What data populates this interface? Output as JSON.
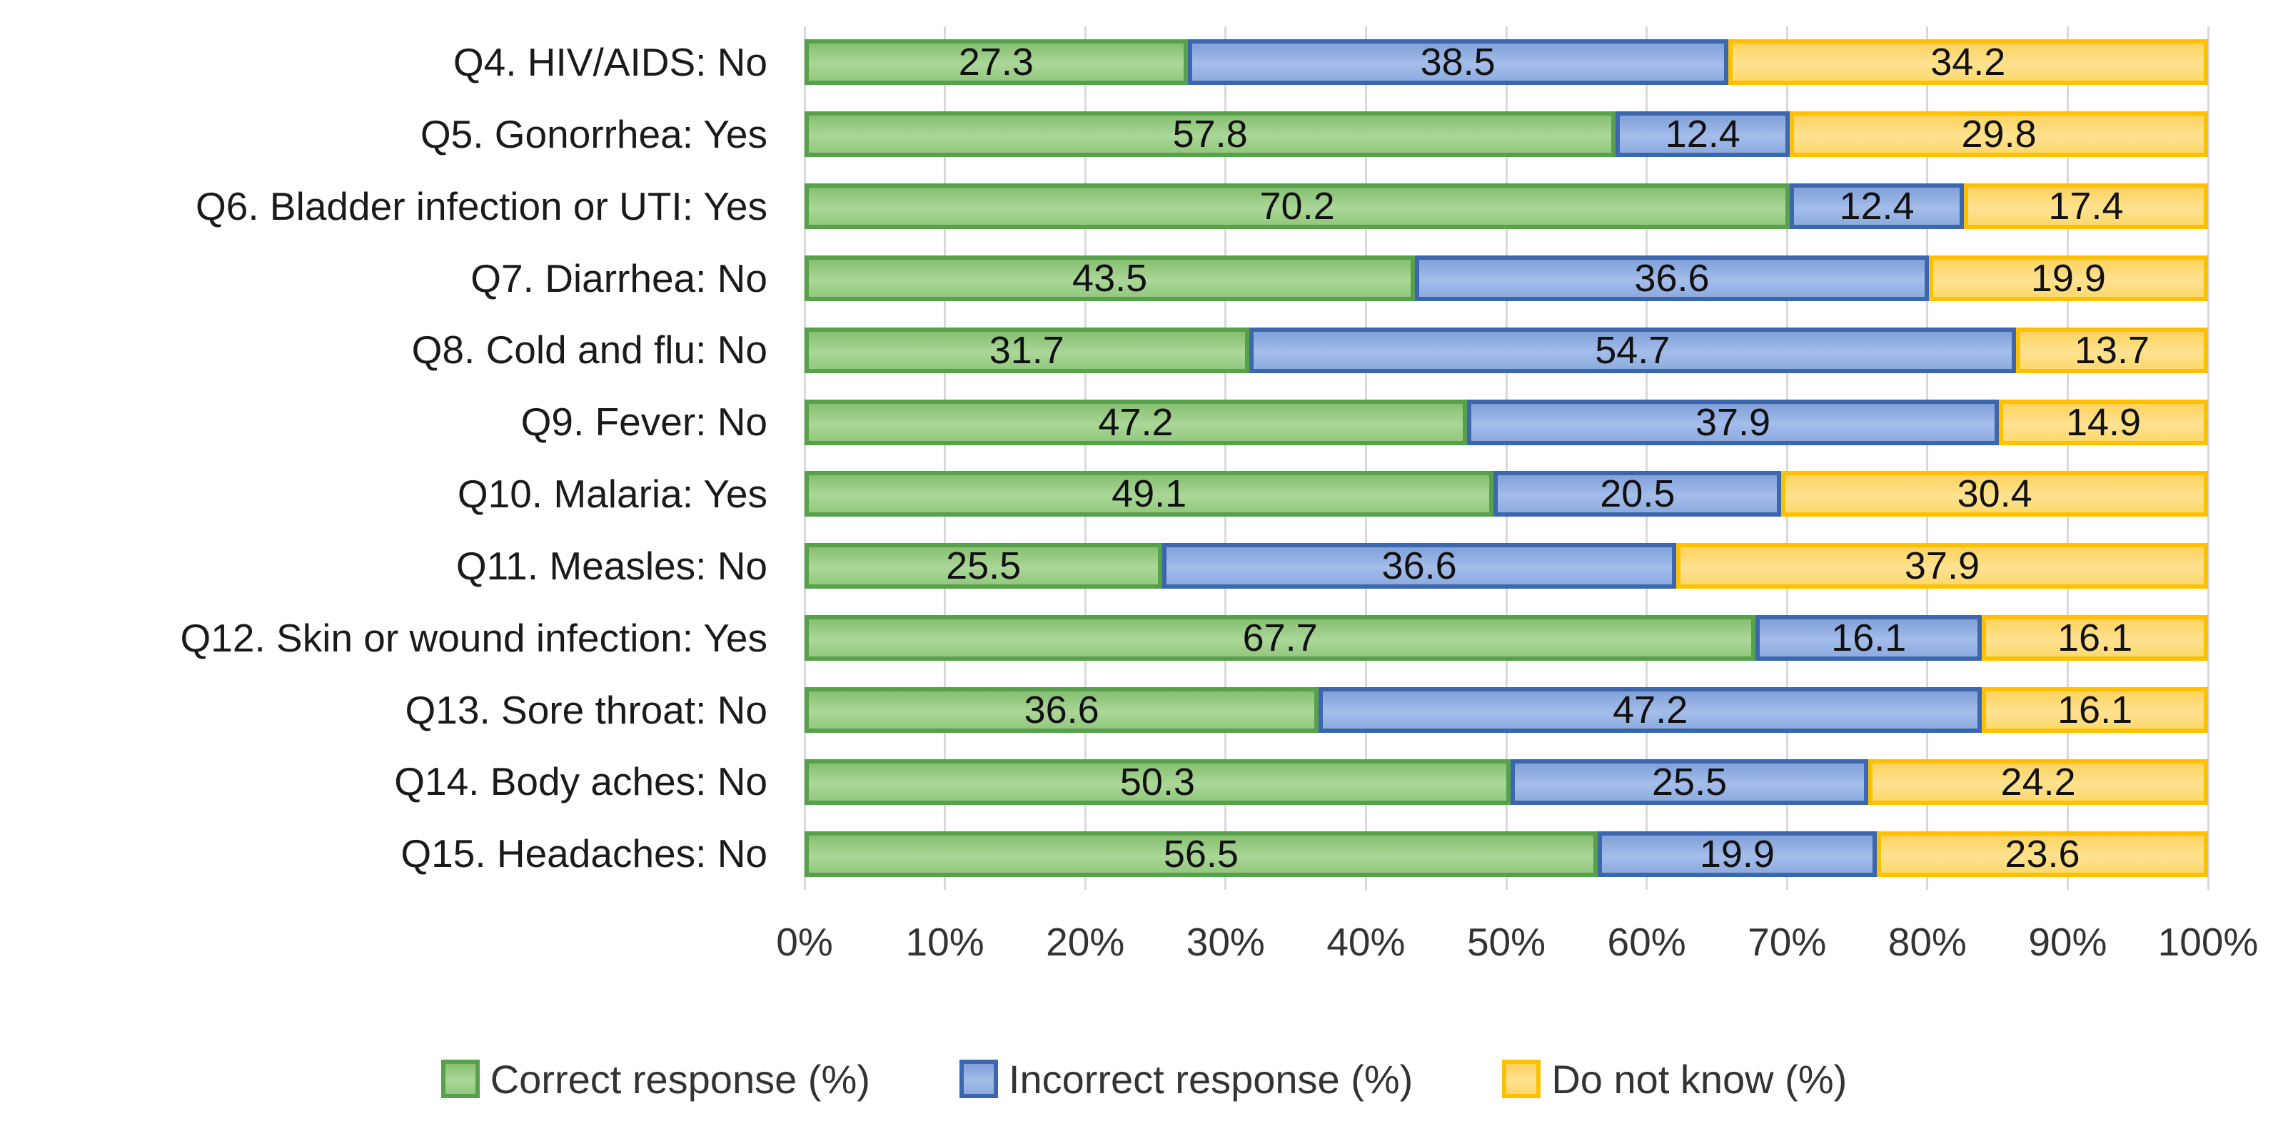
{
  "chart_data": {
    "type": "bar",
    "orientation": "horizontal",
    "stacked": true,
    "title": "",
    "xlabel": "",
    "ylabel": "",
    "xlim": [
      0,
      100
    ],
    "x_ticks": [
      "0%",
      "10%",
      "20%",
      "30%",
      "40%",
      "50%",
      "60%",
      "70%",
      "80%",
      "90%",
      "100%"
    ],
    "grid": "vertical",
    "gridline_color": "#d9d9d9",
    "legend_position": "bottom",
    "categories": [
      "Q4. HIV/AIDS: No",
      "Q5. Gonorrhea: Yes",
      "Q6. Bladder infection or UTI: Yes",
      "Q7. Diarrhea: No",
      "Q8. Cold and flu: No",
      "Q9. Fever: No",
      "Q10. Malaria: Yes",
      "Q11. Measles: No",
      "Q12. Skin or wound infection: Yes",
      "Q13. Sore throat: No",
      "Q14. Body aches: No",
      "Q15. Headaches: No"
    ],
    "series": [
      {
        "name": "Correct response (%)",
        "border_color": "#58a14c",
        "fill_colors": [
          "#86bf70",
          "#abd798",
          "#92c87d"
        ],
        "values": [
          27.3,
          57.8,
          70.2,
          43.5,
          31.7,
          47.2,
          49.1,
          25.5,
          67.7,
          36.6,
          50.3,
          56.5
        ]
      },
      {
        "name": "Incorrect response (%)",
        "border_color": "#3c66ae",
        "fill_colors": [
          "#80a0d8",
          "#a4bdea",
          "#8cabdf"
        ],
        "values": [
          38.5,
          12.4,
          12.4,
          36.6,
          54.7,
          37.9,
          20.5,
          36.6,
          16.1,
          47.2,
          25.5,
          19.9
        ]
      },
      {
        "name": "Do not know (%)",
        "border_color": "#fdc101",
        "fill_colors": [
          "#fdd35e",
          "#ffe291",
          "#fdd96e"
        ],
        "values": [
          34.2,
          29.8,
          17.4,
          19.9,
          13.7,
          14.9,
          30.4,
          37.9,
          16.1,
          16.1,
          24.2,
          23.6
        ]
      }
    ]
  }
}
